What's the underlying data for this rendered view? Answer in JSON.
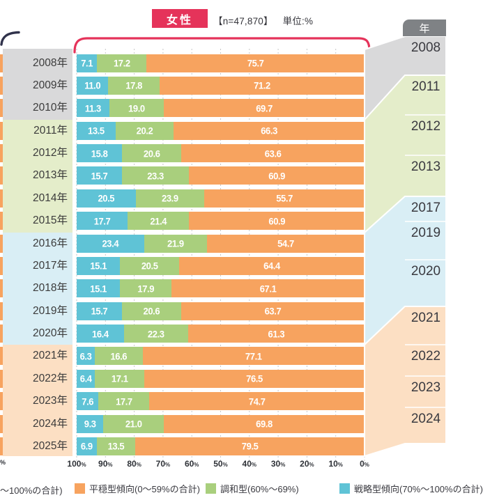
{
  "header": {
    "gender_badge": "女性",
    "sample_size": "【n=47,870】",
    "unit": "単位:%",
    "badge_color": "#e5335a"
  },
  "right_column": {
    "header": "年",
    "header_bg": "#7f8285",
    "cells": [
      {
        "year": "2008",
        "group": 0
      },
      {
        "year": "2011",
        "group": 1
      },
      {
        "year": "2012",
        "group": 1
      },
      {
        "year": "2013",
        "group": 1
      },
      {
        "year": "2017",
        "group": 2
      },
      {
        "year": "2019",
        "group": 2
      },
      {
        "year": "2020",
        "group": 2
      },
      {
        "year": "2021",
        "group": 3
      },
      {
        "year": "2022",
        "group": 3
      },
      {
        "year": "2023",
        "group": 3
      },
      {
        "year": "2024",
        "group": 3
      }
    ]
  },
  "groups": {
    "band_colors": [
      "#d9d9da",
      "#e4edca",
      "#d9eef5",
      "#fcdfc3"
    ],
    "row_group_index": [
      0,
      0,
      0,
      1,
      1,
      1,
      1,
      1,
      2,
      2,
      2,
      2,
      2,
      3,
      3,
      3,
      3,
      3
    ]
  },
  "chart_data": {
    "type": "bar",
    "stacked": true,
    "orientation": "horizontal",
    "axis_reversed": true,
    "title": "女性 【n=47,870】 単位:%",
    "categories": [
      "2008年",
      "2009年",
      "2010年",
      "2011年",
      "2012年",
      "2013年",
      "2014年",
      "2015年",
      "2016年",
      "2017年",
      "2018年",
      "2019年",
      "2020年",
      "2021年",
      "2022年",
      "2023年",
      "2024年",
      "2025年"
    ],
    "series": [
      {
        "name": "戦略型傾向(70%〜100%の合計)",
        "color": "#5fc3d6",
        "values": [
          7.1,
          11.0,
          11.3,
          13.5,
          15.8,
          15.7,
          20.5,
          17.7,
          23.4,
          15.1,
          15.1,
          15.7,
          16.4,
          6.3,
          6.4,
          7.6,
          9.3,
          6.9
        ]
      },
      {
        "name": "調和型(60%〜69%)",
        "color": "#a9cf7d",
        "values": [
          17.2,
          17.8,
          19.0,
          20.2,
          20.6,
          23.3,
          23.9,
          21.4,
          21.9,
          20.5,
          17.9,
          20.6,
          22.3,
          16.6,
          17.1,
          17.7,
          21.0,
          13.5
        ]
      },
      {
        "name": "平穏型傾向(0〜59%の合計)",
        "color": "#f7a35f",
        "values": [
          75.7,
          71.2,
          69.7,
          66.3,
          63.6,
          60.9,
          55.7,
          60.9,
          54.7,
          64.4,
          67.1,
          63.7,
          61.3,
          77.1,
          76.5,
          74.7,
          69.8,
          79.5
        ]
      }
    ],
    "x_ticks": [
      "100",
      "90",
      "80",
      "70",
      "60",
      "50",
      "40",
      "30",
      "20",
      "10",
      "0"
    ],
    "x_tick_unit": "%",
    "xlim": [
      100,
      0
    ],
    "grid": "dashed-vertical"
  },
  "legend": {
    "cutoff_left_text": "〜100%の合計)",
    "items": [
      {
        "label": "平穏型傾向(0〜59%の合計)",
        "color": "#f7a35f"
      },
      {
        "label": "調和型(60%〜69%)",
        "color": "#a9cf7d"
      },
      {
        "label": "戦略型傾向(70%〜100%の合計)",
        "color": "#5fc3d6"
      }
    ]
  },
  "left_edge": {
    "axis_cutoff_label": "%",
    "sliver_color": "#f7a35f"
  }
}
